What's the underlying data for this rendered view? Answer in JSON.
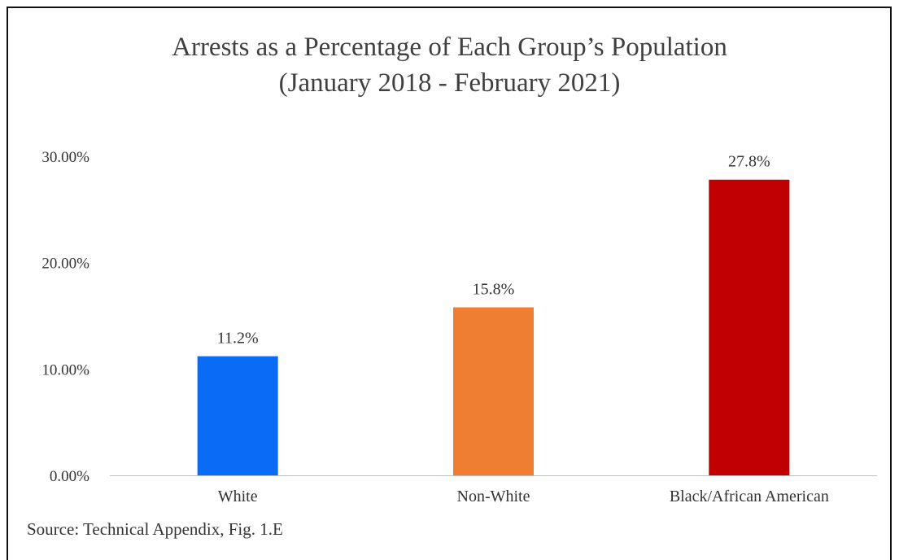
{
  "chart_data": {
    "type": "bar",
    "title_line1": "Arrests as a Percentage of Each Group’s Population",
    "title_line2": "(January 2018 - February 2021)",
    "categories": [
      "White",
      "Non-White",
      "Black/African American"
    ],
    "values": [
      11.2,
      15.8,
      27.8
    ],
    "value_labels": [
      "11.2%",
      "15.8%",
      "27.8%"
    ],
    "colors": [
      "#0a6cf5",
      "#ef7e32",
      "#c00000"
    ],
    "ylim": [
      0,
      30
    ],
    "yticks": [
      0,
      10,
      20,
      30
    ],
    "ytick_labels": [
      "0.00%",
      "10.00%",
      "20.00%",
      "30.00%"
    ],
    "grid": false,
    "legend": "none"
  },
  "source_note": "Source: Technical Appendix, Fig. 1.E"
}
